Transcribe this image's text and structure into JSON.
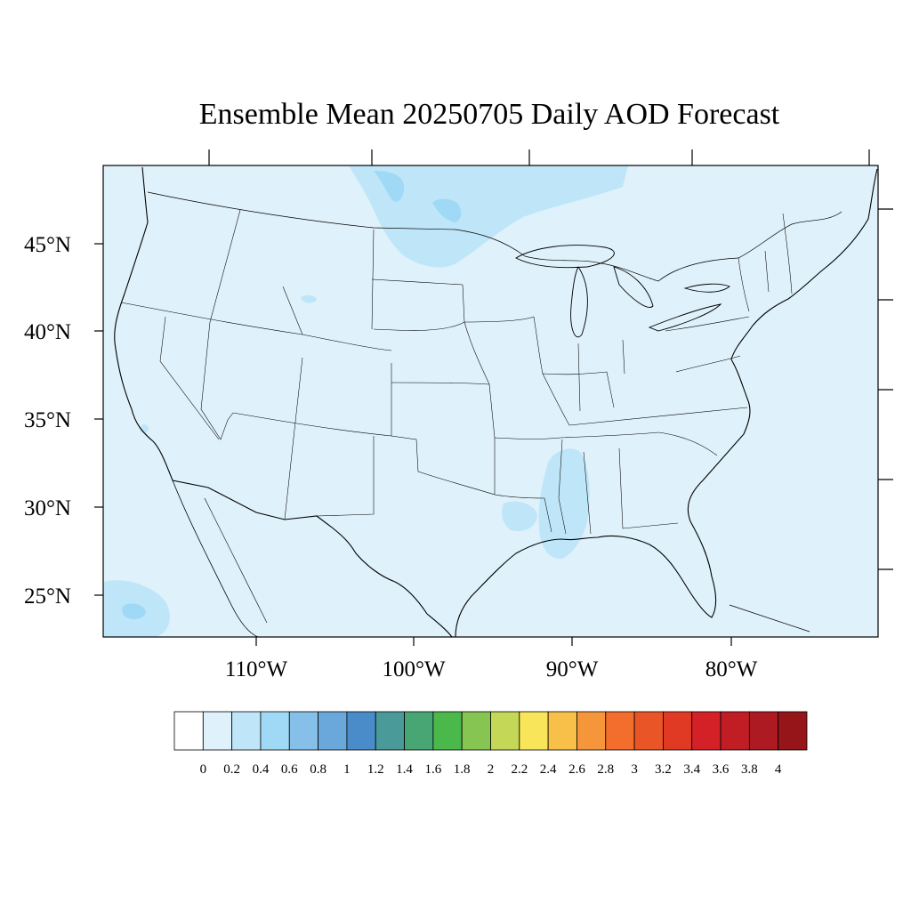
{
  "title": "Ensemble Mean 20250705 Daily AOD Forecast",
  "map": {
    "variable": "AOD",
    "projection": "lambert-conformal",
    "lat_labels": [
      "45°N",
      "40°N",
      "35°N",
      "30°N",
      "25°N"
    ],
    "lon_labels": [
      "110°W",
      "100°W",
      "90°W",
      "80°W"
    ],
    "background_fill": "#dff1fa",
    "plume_colors": [
      "#bfe6f8",
      "#a0d9f5"
    ]
  },
  "colorbar": {
    "labels": [
      "0",
      "0.2",
      "0.4",
      "0.6",
      "0.8",
      "1",
      "1.2",
      "1.4",
      "1.6",
      "1.8",
      "2",
      "2.2",
      "2.4",
      "2.6",
      "2.8",
      "3",
      "3.2",
      "3.4",
      "3.6",
      "3.8",
      "4"
    ],
    "colors": [
      "#ffffff",
      "#dff1fa",
      "#bfe6f8",
      "#a0d9f5",
      "#86c0e8",
      "#6aa8dc",
      "#4a8cc9",
      "#4a9a9a",
      "#48a675",
      "#4ab84a",
      "#86c552",
      "#c4d757",
      "#f8e55a",
      "#f8c049",
      "#f6963b",
      "#f36d2c",
      "#ea5528",
      "#e03a25",
      "#d42127",
      "#c01d24",
      "#ad1a21",
      "#951519"
    ]
  }
}
